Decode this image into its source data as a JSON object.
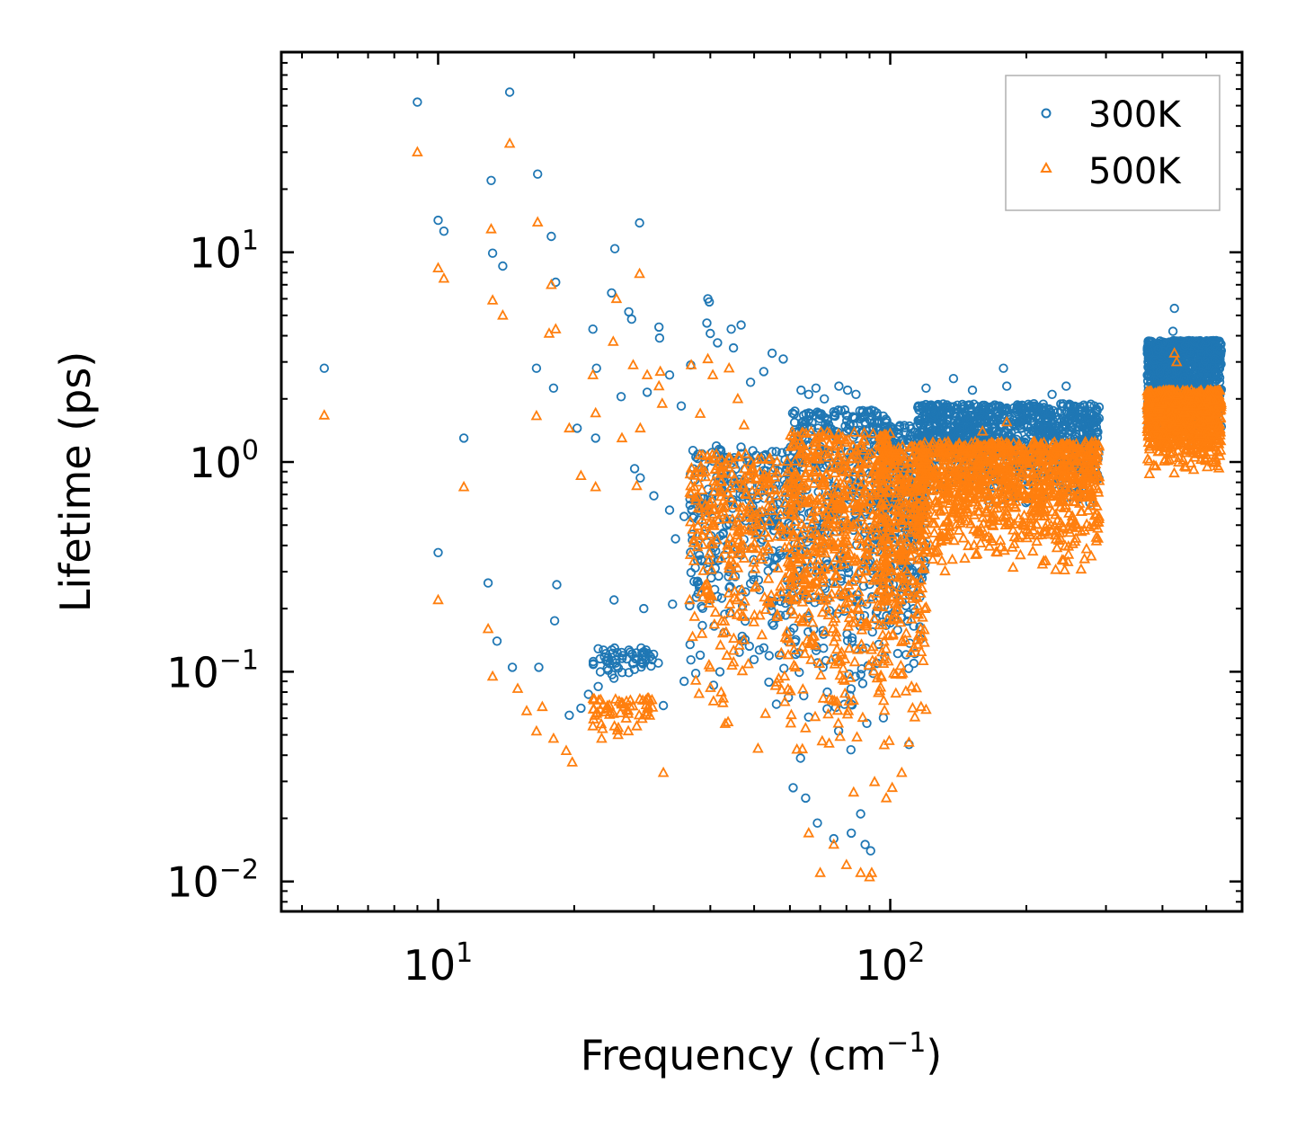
{
  "chart_data": {
    "type": "scatter",
    "title": "",
    "xlabel": {
      "base": "Frequency (cm",
      "exp": "−1",
      "tail": ")"
    },
    "ylabel": "Lifetime (ps)",
    "xscale": "log",
    "yscale": "log",
    "xlim": [
      4.5,
      600
    ],
    "ylim": [
      0.0072,
      90
    ],
    "grid": false,
    "legend_position": "top-right",
    "x_ticks": [
      {
        "value": 10,
        "base": "10",
        "exp": "1"
      },
      {
        "value": 100,
        "base": "10",
        "exp": "2"
      }
    ],
    "y_ticks": [
      {
        "value": 0.01,
        "base": "10",
        "exp": "−2"
      },
      {
        "value": 0.1,
        "base": "10",
        "exp": "−1"
      },
      {
        "value": 1,
        "base": "10",
        "exp": "0"
      },
      {
        "value": 10,
        "base": "10",
        "exp": "1"
      }
    ],
    "series": [
      {
        "name": "300K",
        "marker": "circle",
        "color": "#1f77b4",
        "points": [
          [
            5.6,
            2.8
          ],
          [
            9.0,
            52
          ],
          [
            10.0,
            14.2
          ],
          [
            10.3,
            12.6
          ],
          [
            13.1,
            22
          ],
          [
            13.2,
            9.9
          ],
          [
            13.9,
            8.6
          ],
          [
            14.4,
            58
          ],
          [
            16.6,
            23.6
          ],
          [
            17.8,
            11.9
          ],
          [
            18.2,
            7.2
          ],
          [
            16.5,
            2.8
          ],
          [
            18.0,
            2.25
          ],
          [
            11.4,
            1.3
          ],
          [
            10.0,
            0.37
          ],
          [
            12.9,
            0.265
          ],
          [
            13.5,
            0.14
          ],
          [
            14.6,
            0.105
          ],
          [
            16.7,
            0.105
          ],
          [
            18.1,
            0.175
          ],
          [
            18.3,
            0.26
          ],
          [
            20.3,
            1.45
          ],
          [
            22.3,
            1.3
          ],
          [
            22.0,
            4.3
          ],
          [
            24.2,
            6.4
          ],
          [
            24.6,
            10.4
          ],
          [
            26.4,
            5.2
          ],
          [
            27.9,
            13.8
          ],
          [
            26.8,
            4.8
          ],
          [
            22.4,
            2.8
          ],
          [
            25.4,
            2.05
          ],
          [
            29.0,
            2.15
          ],
          [
            30.8,
            4.4
          ],
          [
            30.9,
            3.9
          ],
          [
            32.5,
            2.6
          ],
          [
            34.5,
            1.85
          ],
          [
            36.2,
            2.9
          ],
          [
            39.5,
            6.0
          ],
          [
            39.8,
            5.8
          ],
          [
            39.3,
            4.6
          ],
          [
            40.0,
            4.1
          ],
          [
            41.5,
            3.7
          ],
          [
            44.5,
            4.3
          ],
          [
            46.8,
            4.5
          ],
          [
            45.0,
            3.5
          ],
          [
            49.1,
            2.4
          ],
          [
            54.8,
            3.3
          ],
          [
            58.0,
            3.1
          ],
          [
            52.5,
            2.7
          ],
          [
            63.5,
            2.2
          ],
          [
            66.0,
            2.1
          ],
          [
            68.5,
            2.25
          ],
          [
            71.5,
            2.0
          ],
          [
            77.0,
            2.3
          ],
          [
            80.5,
            2.2
          ],
          [
            84.0,
            2.1
          ],
          [
            120,
            2.25
          ],
          [
            138,
            2.5
          ],
          [
            152,
            2.2
          ],
          [
            178,
            2.8
          ],
          [
            181,
            2.3
          ],
          [
            228,
            2.1
          ],
          [
            245,
            2.3
          ],
          [
            27.2,
            0.93
          ],
          [
            28.0,
            0.84
          ],
          [
            30.0,
            0.69
          ],
          [
            32.5,
            0.59
          ],
          [
            33.5,
            0.43
          ],
          [
            35.0,
            0.55
          ],
          [
            37.0,
            0.82
          ],
          [
            40.0,
            0.22
          ],
          [
            33.0,
            0.21
          ],
          [
            44.0,
            0.3
          ],
          [
            37.5,
            0.27
          ],
          [
            22.6,
            0.085
          ],
          [
            20.7,
            0.067
          ],
          [
            21.5,
            0.078
          ],
          [
            19.5,
            0.062
          ],
          [
            24.5,
            0.22
          ],
          [
            28.5,
            0.2
          ],
          [
            30.7,
            0.11
          ],
          [
            31.5,
            0.069
          ],
          [
            35.0,
            0.09
          ],
          [
            38.0,
            0.12
          ],
          [
            42.0,
            0.1
          ],
          [
            47.0,
            0.14
          ],
          [
            52.5,
            0.13
          ],
          [
            56.0,
            0.07
          ],
          [
            61.0,
            0.028
          ],
          [
            65.0,
            0.025
          ],
          [
            69.0,
            0.019
          ],
          [
            75.0,
            0.016
          ],
          [
            82.0,
            0.017
          ],
          [
            86.0,
            0.021
          ],
          [
            88.0,
            0.015
          ],
          [
            90.5,
            0.014
          ],
          [
            110,
            0.045
          ],
          [
            425,
            5.4
          ],
          [
            422,
            4.2
          ],
          [
            432,
            3.5
          ]
        ],
        "clusters": [
          {
            "x_range": [
              22,
              30
            ],
            "y_range": [
              0.085,
              0.13
            ],
            "count": 60
          },
          {
            "x_range": [
              36,
              62
            ],
            "y_range": [
              0.055,
              1.2
            ],
            "count": 340
          },
          {
            "x_range": [
              60,
              100
            ],
            "y_range": [
              0.03,
              1.8
            ],
            "count": 520
          },
          {
            "x_range": [
              95,
              120
            ],
            "y_range": [
              0.06,
              1.5
            ],
            "count": 300
          },
          {
            "x_range": [
              115,
              290
            ],
            "y_range": [
              0.55,
              1.9
            ],
            "count": 1000
          },
          {
            "x_range": [
              370,
              540
            ],
            "y_range": [
              1.2,
              3.8
            ],
            "count": 900
          }
        ]
      },
      {
        "name": "500K",
        "marker": "triangle",
        "color": "#ff7f0e",
        "points": [
          [
            5.6,
            1.67
          ],
          [
            9.0,
            30
          ],
          [
            10.0,
            8.4
          ],
          [
            10.3,
            7.5
          ],
          [
            13.1,
            12.9
          ],
          [
            13.2,
            5.9
          ],
          [
            13.9,
            5.0
          ],
          [
            14.4,
            33
          ],
          [
            16.6,
            13.9
          ],
          [
            17.8,
            7.0
          ],
          [
            18.2,
            4.3
          ],
          [
            17.6,
            4.1
          ],
          [
            16.5,
            1.66
          ],
          [
            19.5,
            1.45
          ],
          [
            11.4,
            0.76
          ],
          [
            10.0,
            0.22
          ],
          [
            12.9,
            0.16
          ],
          [
            13.2,
            0.095
          ],
          [
            15.0,
            0.083
          ],
          [
            15.7,
            0.065
          ],
          [
            17.0,
            0.068
          ],
          [
            16.5,
            0.052
          ],
          [
            18.0,
            0.048
          ],
          [
            19.2,
            0.042
          ],
          [
            19.8,
            0.037
          ],
          [
            20.7,
            0.86
          ],
          [
            22.3,
            0.76
          ],
          [
            22.0,
            2.6
          ],
          [
            22.3,
            1.71
          ],
          [
            24.4,
            3.75
          ],
          [
            24.8,
            6.0
          ],
          [
            27.0,
            2.9
          ],
          [
            27.9,
            7.9
          ],
          [
            29.0,
            2.6
          ],
          [
            30.8,
            2.3
          ],
          [
            31.0,
            2.7
          ],
          [
            31.3,
            1.9
          ],
          [
            25.5,
            1.3
          ],
          [
            27.5,
            0.77
          ],
          [
            28.0,
            1.45
          ],
          [
            36.3,
            2.9
          ],
          [
            38.0,
            1.7
          ],
          [
            39.5,
            3.1
          ],
          [
            40.5,
            2.6
          ],
          [
            44.0,
            2.8
          ],
          [
            46.0,
            2.0
          ],
          [
            31.5,
            0.033
          ],
          [
            47.5,
            1.5
          ],
          [
            22.0,
            0.055
          ],
          [
            23.0,
            0.048
          ],
          [
            25.0,
            0.05
          ],
          [
            27.5,
            0.055
          ],
          [
            66.0,
            0.017
          ],
          [
            70.0,
            0.011
          ],
          [
            75.0,
            0.015
          ],
          [
            80.0,
            0.012
          ],
          [
            86.0,
            0.011
          ],
          [
            90.0,
            0.0105
          ],
          [
            91.0,
            0.011
          ],
          [
            98.0,
            0.025
          ],
          [
            101,
            0.028
          ],
          [
            106,
            0.033
          ],
          [
            110,
            0.046
          ],
          [
            117,
            0.068
          ],
          [
            120,
            0.066
          ],
          [
            160,
            1.4
          ],
          [
            181,
            1.55
          ],
          [
            245,
            1.1
          ],
          [
            425,
            3.3
          ],
          [
            430,
            3.0
          ]
        ],
        "clusters": [
          {
            "x_range": [
              22,
              30
            ],
            "y_range": [
              0.048,
              0.075
            ],
            "count": 60
          },
          {
            "x_range": [
              36,
              62
            ],
            "y_range": [
              0.04,
              1.1
            ],
            "count": 340
          },
          {
            "x_range": [
              60,
              100
            ],
            "y_range": [
              0.018,
              1.4
            ],
            "count": 600
          },
          {
            "x_range": [
              95,
              120
            ],
            "y_range": [
              0.045,
              1.2
            ],
            "count": 320
          },
          {
            "x_range": [
              115,
              290
            ],
            "y_range": [
              0.25,
              1.25
            ],
            "count": 1000
          },
          {
            "x_range": [
              370,
              540
            ],
            "y_range": [
              0.8,
              2.2
            ],
            "count": 900
          }
        ]
      }
    ]
  }
}
